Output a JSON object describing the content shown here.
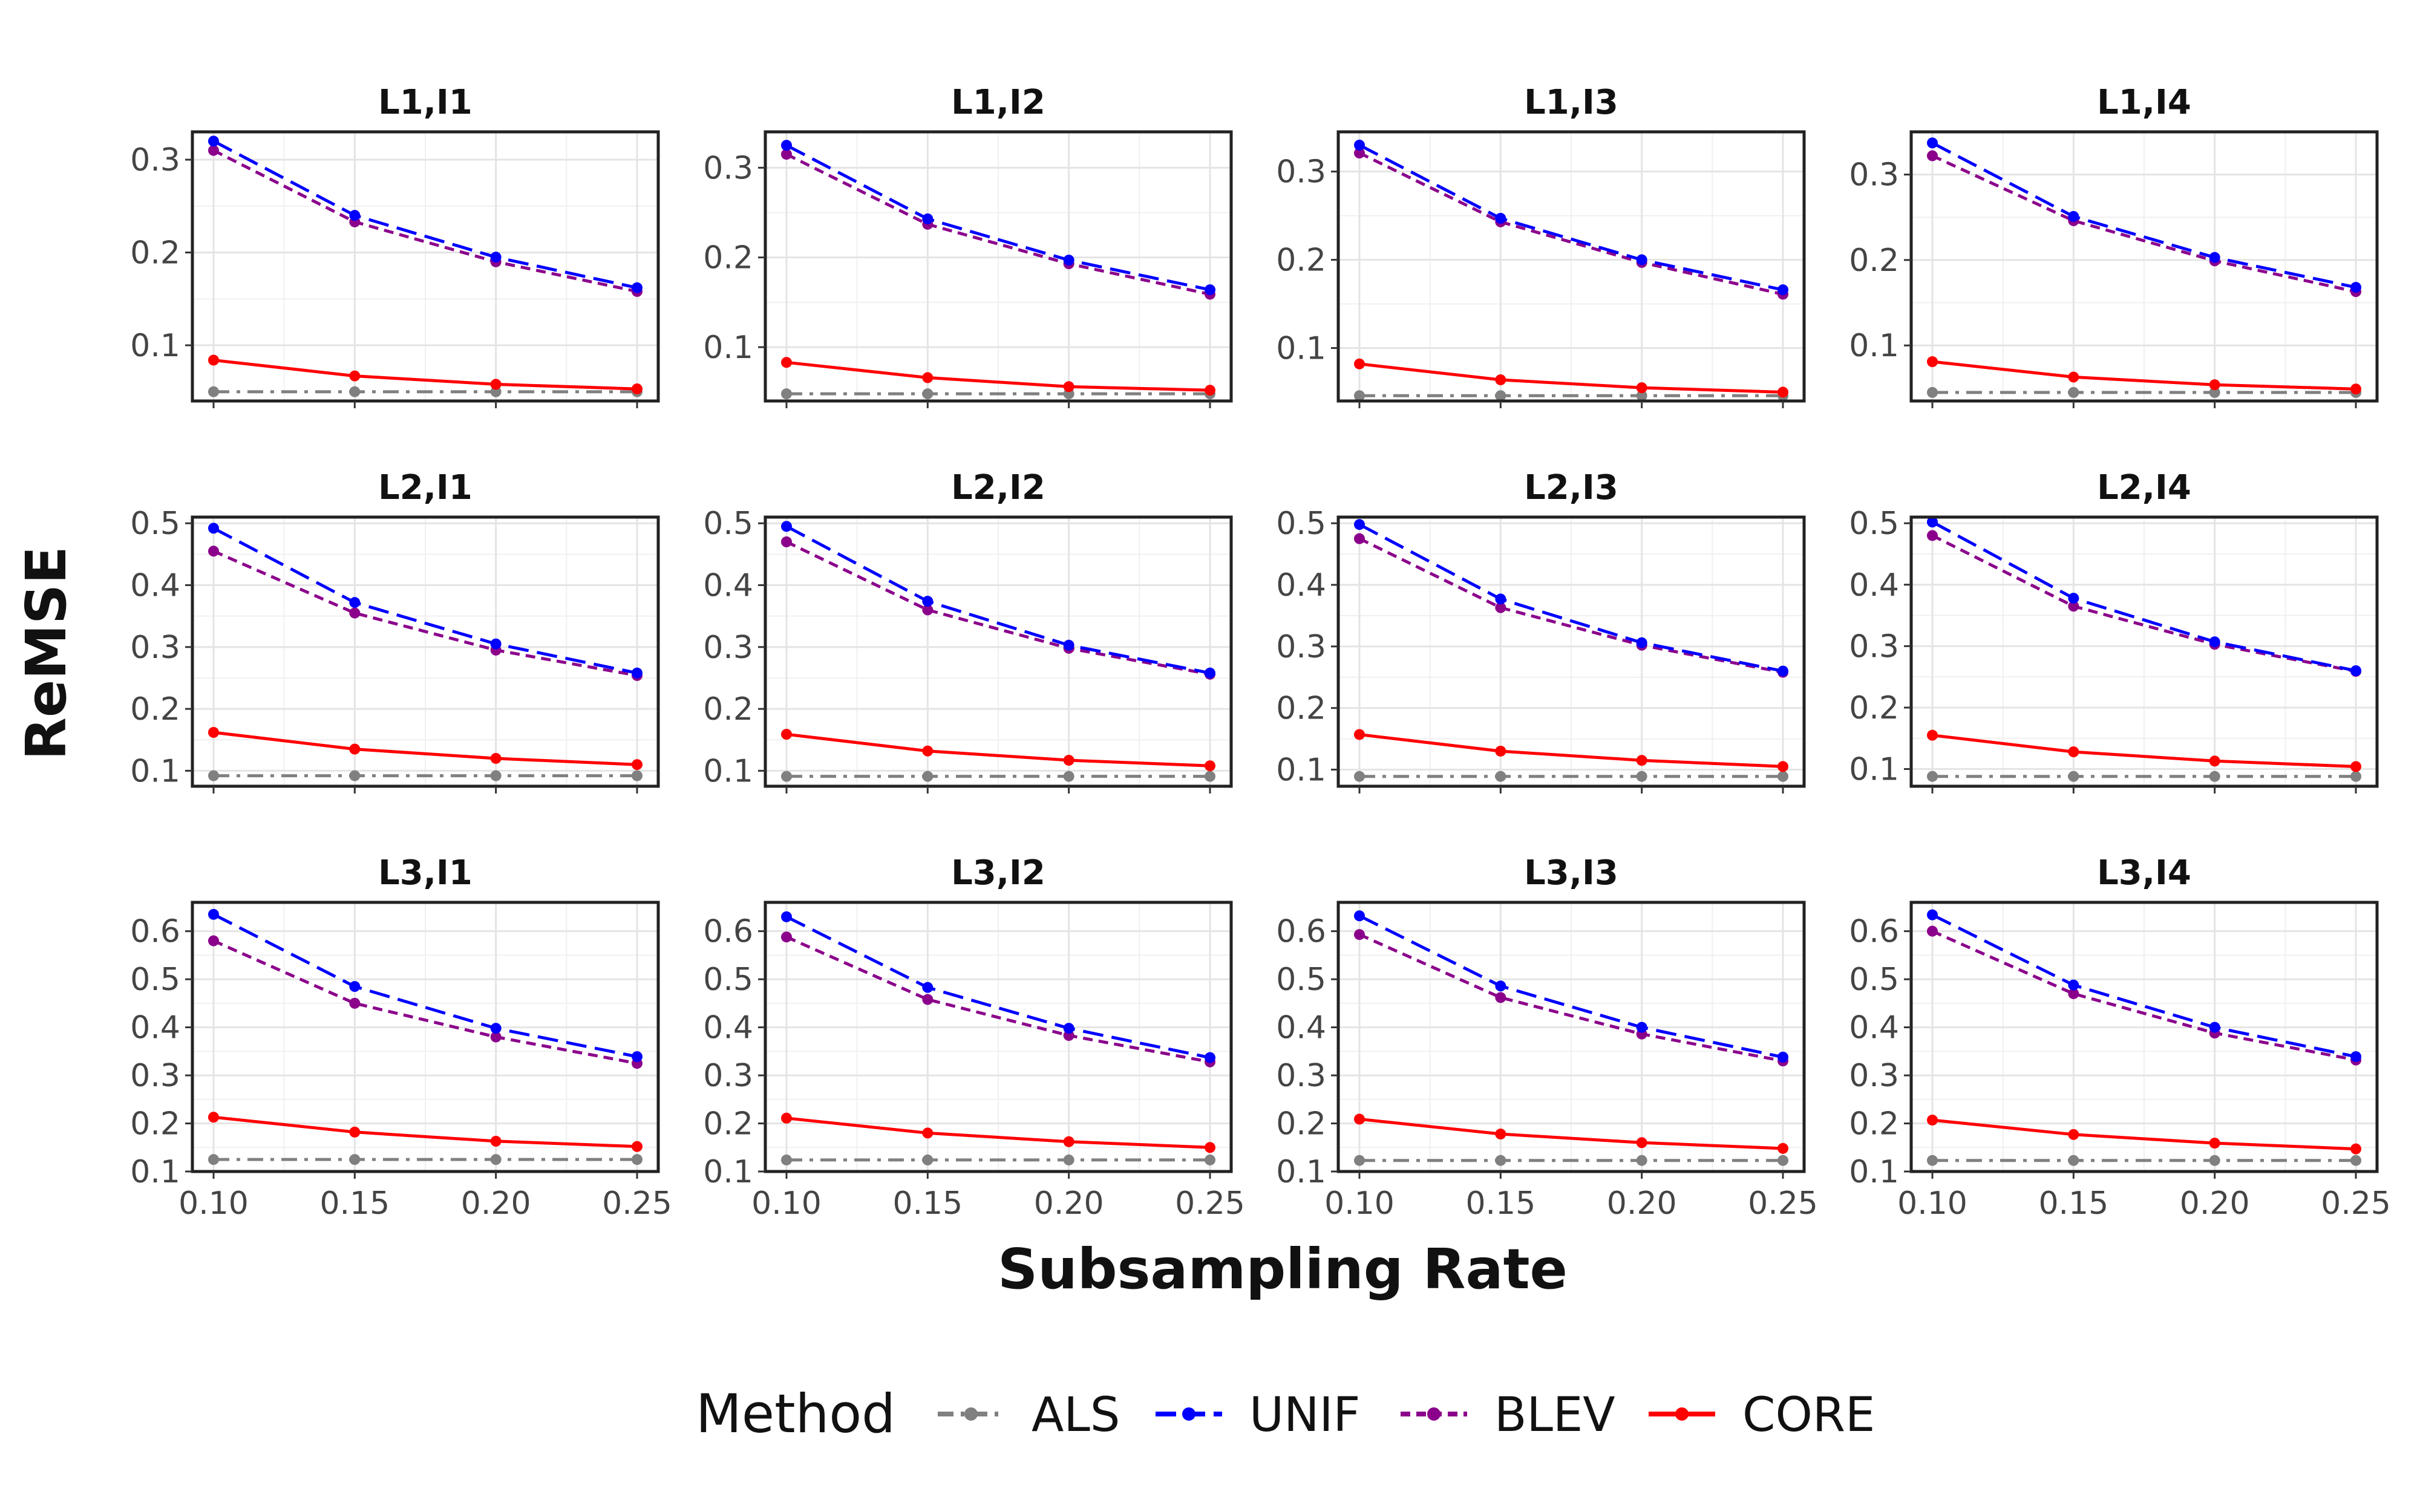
{
  "chart_data": {
    "type": "line",
    "xlabel": "Subsampling Rate",
    "ylabel": "ReMSE",
    "x": [
      0.1,
      0.15,
      0.2,
      0.25
    ],
    "x_tick_labels": [
      "0.10",
      "0.15",
      "0.20",
      "0.25"
    ],
    "grid": true,
    "legend": {
      "title": "Method",
      "placement": "bottom",
      "entries": [
        {
          "name": "ALS",
          "color": "#808080",
          "linestyle": "dashdot"
        },
        {
          "name": "UNIF",
          "color": "#0000ff",
          "linestyle": "longdash"
        },
        {
          "name": "BLEV",
          "color": "#8b008b",
          "linestyle": "dashed"
        },
        {
          "name": "CORE",
          "color": "#ff0000",
          "linestyle": "solid"
        }
      ]
    },
    "panels": [
      {
        "title": "L1,I1",
        "ylim": [
          0.04,
          0.33
        ],
        "yticks": [
          0.1,
          0.2,
          0.3
        ],
        "ytick_labels": [
          "0.1",
          "0.2",
          "0.3"
        ],
        "series": {
          "ALS": [
            0.05,
            0.05,
            0.05,
            0.05
          ],
          "UNIF": [
            0.32,
            0.24,
            0.195,
            0.162
          ],
          "BLEV": [
            0.31,
            0.233,
            0.19,
            0.158
          ],
          "CORE": [
            0.084,
            0.067,
            0.058,
            0.053
          ]
        }
      },
      {
        "title": "L1,I2",
        "ylim": [
          0.04,
          0.34
        ],
        "yticks": [
          0.1,
          0.2,
          0.3
        ],
        "ytick_labels": [
          "0.1",
          "0.2",
          "0.3"
        ],
        "series": {
          "ALS": [
            0.048,
            0.048,
            0.048,
            0.048
          ],
          "UNIF": [
            0.325,
            0.243,
            0.197,
            0.164
          ],
          "BLEV": [
            0.315,
            0.237,
            0.193,
            0.159
          ],
          "CORE": [
            0.083,
            0.066,
            0.056,
            0.052
          ]
        }
      },
      {
        "title": "L1,I3",
        "ylim": [
          0.04,
          0.345
        ],
        "yticks": [
          0.1,
          0.2,
          0.3
        ],
        "ytick_labels": [
          "0.1",
          "0.2",
          "0.3"
        ],
        "series": {
          "ALS": [
            0.046,
            0.046,
            0.046,
            0.046
          ],
          "UNIF": [
            0.33,
            0.247,
            0.2,
            0.166
          ],
          "BLEV": [
            0.321,
            0.243,
            0.197,
            0.161
          ],
          "CORE": [
            0.082,
            0.064,
            0.055,
            0.05
          ]
        }
      },
      {
        "title": "L1,I4",
        "ylim": [
          0.035,
          0.35
        ],
        "yticks": [
          0.1,
          0.2,
          0.3
        ],
        "ytick_labels": [
          "0.1",
          "0.2",
          "0.3"
        ],
        "series": {
          "ALS": [
            0.045,
            0.045,
            0.045,
            0.045
          ],
          "UNIF": [
            0.337,
            0.251,
            0.203,
            0.168
          ],
          "BLEV": [
            0.322,
            0.246,
            0.199,
            0.163
          ],
          "CORE": [
            0.081,
            0.063,
            0.054,
            0.049
          ]
        }
      },
      {
        "title": "L2,I1",
        "ylim": [
          0.075,
          0.51
        ],
        "yticks": [
          0.1,
          0.2,
          0.3,
          0.4,
          0.5
        ],
        "ytick_labels": [
          "0.1",
          "0.2",
          "0.3",
          "0.4",
          "0.5"
        ],
        "series": {
          "ALS": [
            0.092,
            0.092,
            0.092,
            0.092
          ],
          "UNIF": [
            0.492,
            0.372,
            0.305,
            0.258
          ],
          "BLEV": [
            0.455,
            0.355,
            0.295,
            0.254
          ],
          "CORE": [
            0.162,
            0.135,
            0.12,
            0.11
          ]
        }
      },
      {
        "title": "L2,I2",
        "ylim": [
          0.075,
          0.51
        ],
        "yticks": [
          0.1,
          0.2,
          0.3,
          0.4,
          0.5
        ],
        "ytick_labels": [
          "0.1",
          "0.2",
          "0.3",
          "0.4",
          "0.5"
        ],
        "series": {
          "ALS": [
            0.091,
            0.091,
            0.091,
            0.091
          ],
          "UNIF": [
            0.495,
            0.374,
            0.303,
            0.258
          ],
          "BLEV": [
            0.47,
            0.36,
            0.298,
            0.256
          ],
          "CORE": [
            0.159,
            0.132,
            0.117,
            0.108
          ]
        }
      },
      {
        "title": "L2,I3",
        "ylim": [
          0.073,
          0.51
        ],
        "yticks": [
          0.1,
          0.2,
          0.3,
          0.4,
          0.5
        ],
        "ytick_labels": [
          "0.1",
          "0.2",
          "0.3",
          "0.4",
          "0.5"
        ],
        "series": {
          "ALS": [
            0.089,
            0.089,
            0.089,
            0.089
          ],
          "UNIF": [
            0.498,
            0.377,
            0.306,
            0.26
          ],
          "BLEV": [
            0.475,
            0.363,
            0.302,
            0.258
          ],
          "CORE": [
            0.157,
            0.13,
            0.115,
            0.105
          ]
        }
      },
      {
        "title": "L2,I4",
        "ylim": [
          0.072,
          0.51
        ],
        "yticks": [
          0.1,
          0.2,
          0.3,
          0.4,
          0.5
        ],
        "ytick_labels": [
          "0.1",
          "0.2",
          "0.3",
          "0.4",
          "0.5"
        ],
        "series": {
          "ALS": [
            0.088,
            0.088,
            0.088,
            0.088
          ],
          "UNIF": [
            0.502,
            0.378,
            0.307,
            0.26
          ],
          "BLEV": [
            0.48,
            0.365,
            0.303,
            0.259
          ],
          "CORE": [
            0.155,
            0.128,
            0.113,
            0.104
          ]
        }
      },
      {
        "title": "L3,I1",
        "ylim": [
          0.1,
          0.66
        ],
        "yticks": [
          0.1,
          0.2,
          0.3,
          0.4,
          0.5,
          0.6
        ],
        "ytick_labels": [
          "0.1",
          "0.2",
          "0.3",
          "0.4",
          "0.5",
          "0.6"
        ],
        "series": {
          "ALS": [
            0.125,
            0.125,
            0.125,
            0.125
          ],
          "UNIF": [
            0.635,
            0.485,
            0.398,
            0.339
          ],
          "BLEV": [
            0.58,
            0.45,
            0.38,
            0.325
          ],
          "CORE": [
            0.213,
            0.182,
            0.163,
            0.152
          ]
        }
      },
      {
        "title": "L3,I2",
        "ylim": [
          0.1,
          0.66
        ],
        "yticks": [
          0.1,
          0.2,
          0.3,
          0.4,
          0.5,
          0.6
        ],
        "ytick_labels": [
          "0.1",
          "0.2",
          "0.3",
          "0.4",
          "0.5",
          "0.6"
        ],
        "series": {
          "ALS": [
            0.124,
            0.124,
            0.124,
            0.124
          ],
          "UNIF": [
            0.63,
            0.483,
            0.398,
            0.337
          ],
          "BLEV": [
            0.588,
            0.458,
            0.383,
            0.328
          ],
          "CORE": [
            0.211,
            0.18,
            0.162,
            0.15
          ]
        }
      },
      {
        "title": "L3,I3",
        "ylim": [
          0.1,
          0.66
        ],
        "yticks": [
          0.1,
          0.2,
          0.3,
          0.4,
          0.5,
          0.6
        ],
        "ytick_labels": [
          "0.1",
          "0.2",
          "0.3",
          "0.4",
          "0.5",
          "0.6"
        ],
        "series": {
          "ALS": [
            0.123,
            0.123,
            0.123,
            0.123
          ],
          "UNIF": [
            0.632,
            0.486,
            0.4,
            0.338
          ],
          "BLEV": [
            0.593,
            0.462,
            0.386,
            0.33
          ],
          "CORE": [
            0.209,
            0.178,
            0.16,
            0.148
          ]
        }
      },
      {
        "title": "L3,I4",
        "ylim": [
          0.1,
          0.66
        ],
        "yticks": [
          0.1,
          0.2,
          0.3,
          0.4,
          0.5,
          0.6
        ],
        "ytick_labels": [
          "0.1",
          "0.2",
          "0.3",
          "0.4",
          "0.5",
          "0.6"
        ],
        "series": {
          "ALS": [
            0.123,
            0.123,
            0.123,
            0.123
          ],
          "UNIF": [
            0.634,
            0.488,
            0.4,
            0.339
          ],
          "BLEV": [
            0.6,
            0.47,
            0.388,
            0.332
          ],
          "CORE": [
            0.207,
            0.177,
            0.159,
            0.147
          ]
        }
      }
    ]
  }
}
